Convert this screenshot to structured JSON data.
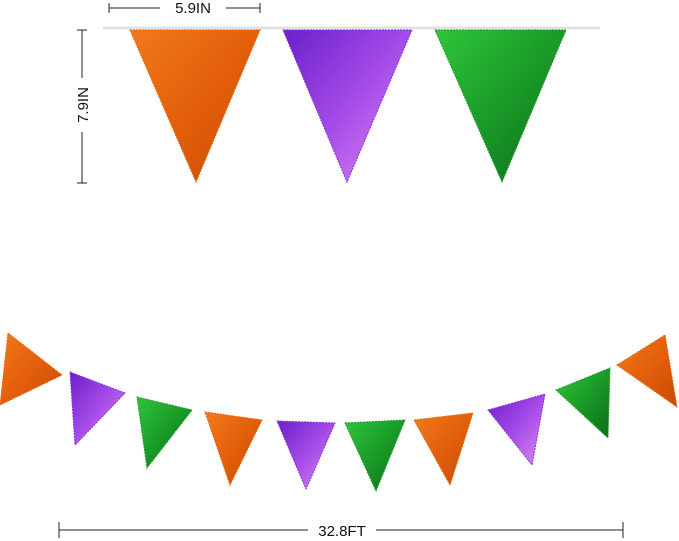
{
  "dimensions": {
    "flag_width": "5.9IN",
    "flag_height": "7.9IN",
    "total_length": "32.8FT"
  },
  "colors": {
    "orange": "#e8620c",
    "purple": "#8a2be2",
    "green": "#1f9a2a",
    "string": "#e6e6e6"
  },
  "top_flags": [
    "orange",
    "purple",
    "green"
  ],
  "garland_flags": [
    "orange",
    "purple",
    "green",
    "orange",
    "purple",
    "green",
    "orange",
    "purple",
    "green",
    "orange"
  ]
}
